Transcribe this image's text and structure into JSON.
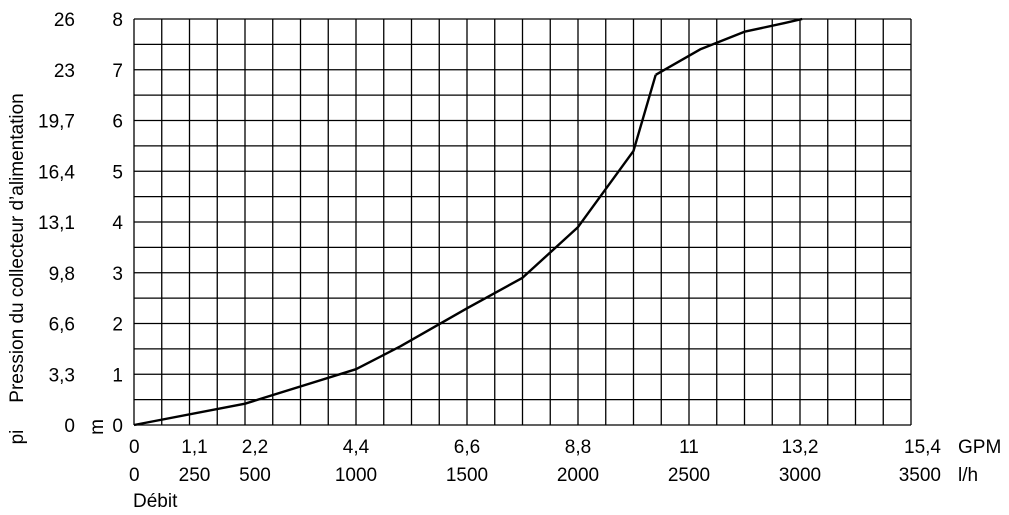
{
  "chart_data": {
    "type": "line",
    "title": "",
    "xlabel": "Débit",
    "ylabel": "Pression du collecteur d’alimentation",
    "x_unit_primary": "l/h",
    "x_unit_secondary": "GPM",
    "y_unit_primary": "m",
    "y_unit_secondary": "pi",
    "xlim": [
      0,
      3500
    ],
    "ylim": [
      0,
      8
    ],
    "x_ticks_lh": [
      "0",
      "500",
      "1000",
      "1500",
      "2000",
      "2500",
      "3000",
      "3500"
    ],
    "x_ticks_lh_minor": [
      "250"
    ],
    "x_ticks_gpm": [
      "0",
      "1,1",
      "2,2",
      "4,4",
      "6,6",
      "8,8",
      "11",
      "13,2",
      "15,4"
    ],
    "y_ticks_m": [
      "0",
      "1",
      "2",
      "3",
      "4",
      "5",
      "6",
      "7",
      "8"
    ],
    "y_ticks_pi": [
      "0",
      "3,3",
      "6,6",
      "9,8",
      "13,1",
      "16,4",
      "19,7",
      "23",
      "26"
    ],
    "grid": true,
    "series": [
      {
        "x": [
          0,
          500,
          1000,
          1200,
          1500,
          1750,
          2000,
          2250,
          2350
        ],
        "y": [
          0,
          0.42,
          1.1,
          1.55,
          2.3,
          2.9,
          3.9,
          5.4,
          6.9
        ]
      },
      {
        "x": [
          2350,
          2550,
          2750,
          2930,
          3010
        ],
        "y": [
          6.9,
          7.4,
          7.75,
          7.92,
          8.0
        ]
      }
    ]
  }
}
